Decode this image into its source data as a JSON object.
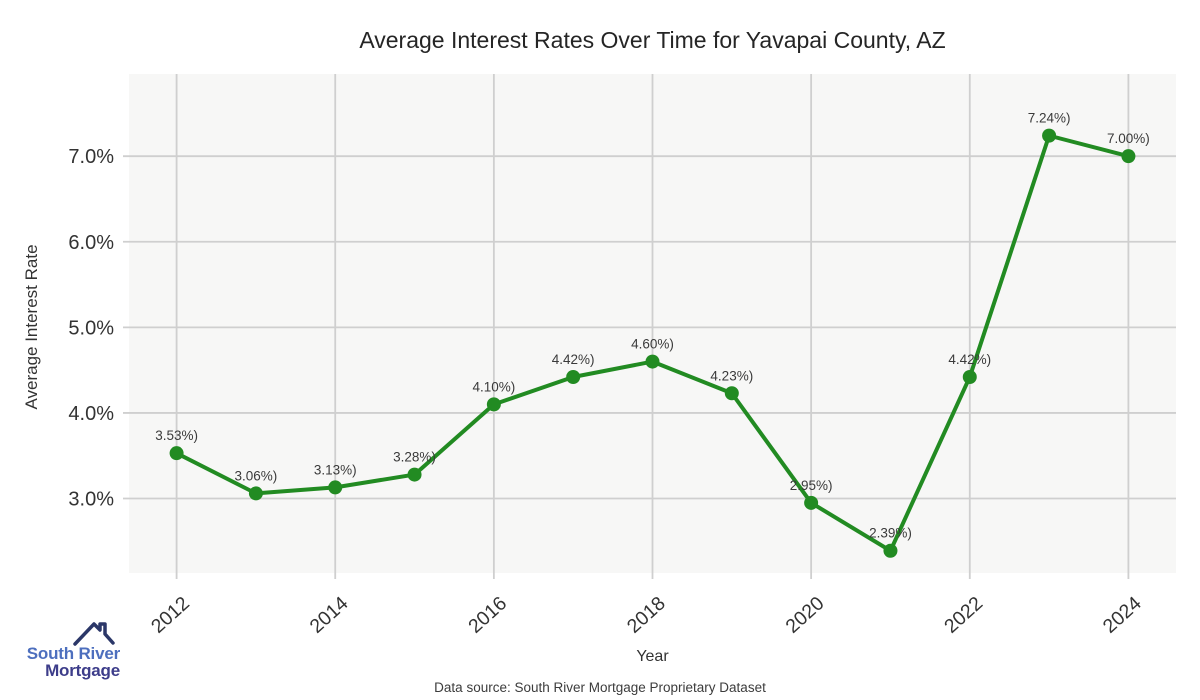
{
  "chart_data": {
    "type": "line",
    "title": "Average Interest Rates Over Time for Yavapai County, AZ",
    "xlabel": "Year",
    "ylabel": "Average Interest Rate",
    "x": [
      2012,
      2013,
      2014,
      2015,
      2016,
      2017,
      2018,
      2019,
      2020,
      2021,
      2022,
      2023,
      2024
    ],
    "values": [
      3.53,
      3.06,
      3.13,
      3.28,
      4.1,
      4.42,
      4.6,
      4.23,
      2.95,
      2.39,
      4.42,
      7.24,
      7.0
    ],
    "point_labels": [
      "3.53%)",
      "3.06%)",
      "3.13%)",
      "3.28%)",
      "4.10%)",
      "4.42%)",
      "4.60%)",
      "4.23%)",
      "2.95%)",
      "2.39%)",
      "4.42%)",
      "7.24%)",
      "7.00%)"
    ],
    "x_ticks": [
      2012,
      2014,
      2016,
      2018,
      2020,
      2022,
      2024
    ],
    "x_tick_labels": [
      "2012",
      "2014",
      "2016",
      "2018",
      "2020",
      "2022",
      "2024"
    ],
    "y_ticks": [
      3,
      4,
      5,
      6,
      7
    ],
    "y_tick_labels": [
      "3.0%",
      "4.0%",
      "5.0%",
      "6.0%",
      "7.0%"
    ],
    "xlim": [
      2011.4,
      2024.6
    ],
    "ylim": [
      2.13,
      7.96
    ],
    "grid": true,
    "legend": false,
    "line_color": "#228B22",
    "plot_bg": "#f7f7f6",
    "grid_color": "#cfcfcf",
    "tick_color": "#333333",
    "label_color": "#3a3a3a"
  },
  "footer": {
    "source": "Data source: South River Mortgage Proprietary Dataset"
  },
  "logo": {
    "name": "South River Mortgage",
    "line1": "South River",
    "line2": "Mortgage",
    "colors": {
      "line1": "#4d6fbe",
      "line2": "#3d3d8a",
      "roof": "#2b3768"
    }
  }
}
